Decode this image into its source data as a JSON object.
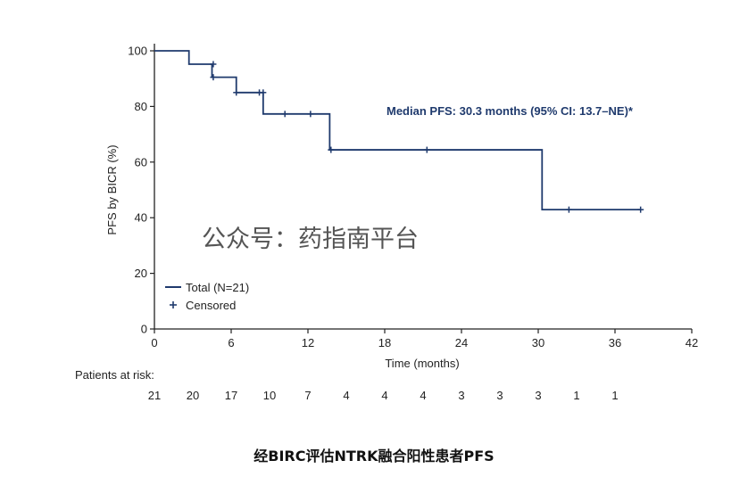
{
  "chart_data": {
    "type": "line",
    "xlabel": "Time (months)",
    "ylabel": "PFS by BICR (%)",
    "xlim": [
      0,
      42
    ],
    "ylim": [
      0,
      100
    ],
    "x_ticks": [
      "0",
      "6",
      "12",
      "18",
      "24",
      "30",
      "36",
      "42"
    ],
    "y_ticks": [
      "0",
      "20",
      "40",
      "60",
      "80",
      "100"
    ],
    "grid": false,
    "legend_position": "bottom-left",
    "series": [
      {
        "name": "Total (N=21)",
        "color": "#1f3a6d",
        "step": true,
        "x": [
          0,
          2.7,
          4.5,
          6.4,
          8.5,
          13.7,
          30.3,
          38
        ],
        "y": [
          100,
          95.2,
          90.5,
          85.0,
          77.3,
          64.4,
          42.9,
          42.9
        ]
      }
    ],
    "censored": {
      "name": "Censored",
      "marker": "+",
      "x": [
        4.6,
        4.6,
        6.4,
        8.2,
        8.5,
        10.2,
        12.2,
        13.8,
        21.3,
        32.4,
        38.0
      ],
      "y": [
        95.2,
        90.5,
        85.0,
        85.0,
        85.0,
        77.3,
        77.3,
        64.4,
        64.4,
        42.9,
        42.9
      ]
    },
    "annotation": "Median PFS: 30.3 months (95% CI: 13.7–NE)*"
  },
  "risk_table": {
    "label": "Patients at risk:",
    "counts": [
      "21",
      "20",
      "17",
      "10",
      "7",
      "4",
      "4",
      "4",
      "3",
      "3",
      "3",
      "1",
      "1"
    ]
  },
  "watermark": "公众号：药指南平台",
  "caption": "经BIRC评估NTRK融合阳性患者PFS"
}
